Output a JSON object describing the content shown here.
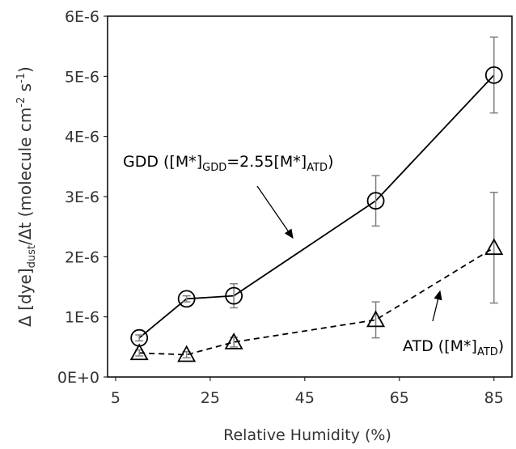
{
  "chart_data": {
    "type": "line",
    "x_label": "Relative Humidity (%)",
    "y_label": [
      "Δ [dye]",
      "dust",
      "/Δt  (molecule cm",
      "-2",
      " s",
      "-1",
      ")"
    ],
    "x": [
      10,
      20,
      30,
      60,
      85
    ],
    "series": [
      {
        "color": "#000000",
        "marker": "circle",
        "dash": false,
        "values": [
          6.5e-07,
          1.3e-06,
          1.35e-06,
          2.93e-06,
          5.02e-06
        ],
        "errors": [
          5e-08,
          5e-08,
          2e-07,
          4.2e-07,
          6.3e-07
        ]
      },
      {
        "color": "#000000",
        "marker": "triangle",
        "dash": true,
        "values": [
          4e-07,
          3.7e-07,
          5.8e-07,
          9.5e-07,
          2.15e-06
        ],
        "errors": [
          5e-08,
          5e-08,
          8e-08,
          3e-07,
          9.2e-07
        ]
      }
    ],
    "annotations": [
      [
        "GDD ([M*]",
        "GDD",
        "=2.55[M*]",
        "ATD",
        ")"
      ],
      [
        "ATD ([M*]",
        "ATD",
        ")"
      ]
    ],
    "xlim": [
      3.3,
      88.8
    ],
    "xticks": [
      5,
      25,
      45,
      65,
      85
    ],
    "ylim": [
      0,
      6e-06
    ],
    "yticks": [
      {
        "value": 0,
        "label": "0E+0"
      },
      {
        "value": 1e-06,
        "label": "1E-6"
      },
      {
        "value": 2e-06,
        "label": "2E-6"
      },
      {
        "value": 3e-06,
        "label": "3E-6"
      },
      {
        "value": 4e-06,
        "label": "4E-6"
      },
      {
        "value": 5e-06,
        "label": "5E-6"
      },
      {
        "value": 6e-06,
        "label": "6E-6"
      }
    ],
    "error_bar_color": "#808080"
  }
}
